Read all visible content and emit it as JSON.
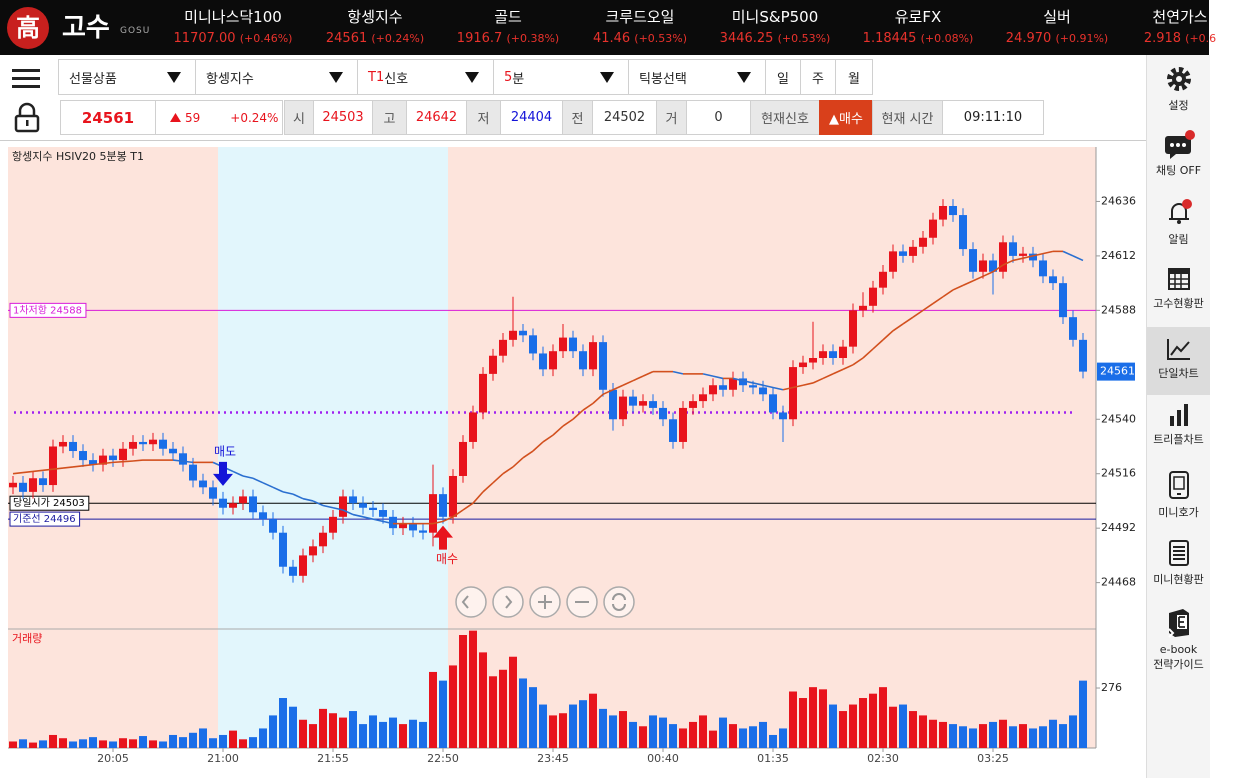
{
  "header": {
    "logo_char": "高",
    "logo_text": "고수",
    "logo_sub": "GOSU",
    "tickers": [
      {
        "name": "미니나스닥100",
        "price": "11707.00",
        "change": "(+0.46%)"
      },
      {
        "name": "항셍지수",
        "price": "24561",
        "change": "(+0.24%)"
      },
      {
        "name": "골드",
        "price": "1916.7",
        "change": "(+0.38%)"
      },
      {
        "name": "크루드오일",
        "price": "41.46",
        "change": "(+0.53%)"
      },
      {
        "name": "미니S&P500",
        "price": "3446.25",
        "change": "(+0.53%)"
      },
      {
        "name": "유로FX",
        "price": "1.18445",
        "change": "(+0.08%)"
      },
      {
        "name": "실버",
        "price": "24.970",
        "change": "(+0.91%)"
      },
      {
        "name": "천연가스",
        "price": "2.918",
        "change": "(+0.6"
      }
    ]
  },
  "toolbar": {
    "selects": [
      {
        "text": "선물상품"
      },
      {
        "text": "항셍지수"
      },
      {
        "accent": "T1",
        "text": "신호"
      },
      {
        "accent": "5",
        "text": "분"
      },
      {
        "text": "틱봉선택"
      }
    ],
    "periods": [
      "일",
      "주",
      "월"
    ]
  },
  "quote": {
    "price": "24561",
    "change": "59",
    "change_pct": "+0.24%",
    "fields": [
      {
        "label": "시",
        "value": "24503"
      },
      {
        "label": "고",
        "value": "24642"
      },
      {
        "label": "저",
        "value": "24404"
      },
      {
        "label": "전",
        "value": "24502"
      },
      {
        "label": "거",
        "value": "0"
      }
    ],
    "signal_label": "현재신호",
    "signal": "▲매수",
    "time_label": "현재 시간",
    "time": "09:11:10"
  },
  "sidebar": [
    {
      "label": "설정"
    },
    {
      "label": "채팅 OFF"
    },
    {
      "label": "알림"
    },
    {
      "label": "고수현황판"
    },
    {
      "label": "단일차트",
      "selected": true
    },
    {
      "label": "트리플차트"
    },
    {
      "label": "미니호가"
    },
    {
      "label": "미니현황판"
    },
    {
      "label": "e-book",
      "label2": "전략가이드"
    }
  ],
  "chart_data": {
    "type": "candlestick",
    "title": "항셍지수 HSIV20 5분봉 T1",
    "volume_title": "거래량",
    "up_color": "#e8141d",
    "down_color": "#1a6ee8",
    "categories": [
      null,
      null,
      null,
      null,
      null,
      null,
      null,
      null,
      null,
      null,
      "20:05",
      null,
      null,
      null,
      null,
      null,
      null,
      null,
      null,
      null,
      null,
      "21:00",
      null,
      null,
      null,
      null,
      null,
      null,
      null,
      null,
      null,
      null,
      "21:55",
      null,
      null,
      null,
      null,
      null,
      null,
      null,
      null,
      null,
      null,
      "22:50",
      null,
      null,
      null,
      null,
      null,
      null,
      null,
      null,
      null,
      null,
      "23:45",
      null,
      null,
      null,
      null,
      null,
      null,
      null,
      null,
      null,
      null,
      "00:40",
      null,
      null,
      null,
      null,
      null,
      null,
      null,
      null,
      null,
      null,
      "01:35",
      null,
      null,
      null,
      null,
      null,
      null,
      null,
      null,
      null,
      null,
      "02:30",
      null,
      null,
      null,
      null,
      null,
      null,
      null,
      null,
      null,
      null,
      "03:25",
      null,
      null,
      null,
      null,
      null,
      null,
      null,
      null,
      null
    ],
    "open": [
      24510,
      24512,
      24508,
      24514,
      24511,
      24528,
      24530,
      24526,
      24522,
      24520,
      24524,
      24522,
      24527,
      24530,
      24529,
      24531,
      24527,
      24525,
      24520,
      24513,
      24510,
      24505,
      24501,
      24503,
      24506,
      24499,
      24496,
      24490,
      24475,
      24471,
      24480,
      24484,
      24490,
      24497,
      24506,
      24503,
      24501,
      24500,
      24497,
      24492,
      24494,
      24491,
      24490,
      24507,
      24497,
      24515,
      24530,
      24543,
      24560,
      24568,
      24575,
      24579,
      24577,
      24569,
      24562,
      24570,
      24576,
      24570,
      24562,
      24574,
      24553,
      24540,
      24550,
      24546,
      24548,
      24545,
      24540,
      24530,
      24545,
      24548,
      24551,
      24555,
      24553,
      24558,
      24555,
      24554,
      24551,
      24543,
      24540,
      24563,
      24565,
      24567,
      24570,
      24567,
      24572,
      24588,
      24590,
      24598,
      24605,
      24614,
      24612,
      24616,
      24620,
      24628,
      24634,
      24630,
      24615,
      24605,
      24610,
      24605,
      24618,
      24612,
      24613,
      24610,
      24603,
      24600,
      24585,
      24575
    ],
    "high": [
      24515,
      24515,
      24517,
      24517,
      24531,
      24533,
      24533,
      24529,
      24525,
      24527,
      24527,
      24530,
      24533,
      24533,
      24534,
      24534,
      24530,
      24528,
      24523,
      24516,
      24513,
      24508,
      24506,
      24509,
      24509,
      24502,
      24499,
      24493,
      24478,
      24483,
      24487,
      24493,
      24500,
      24509,
      24509,
      24506,
      24504,
      24503,
      24500,
      24497,
      24497,
      24494,
      24520,
      24510,
      24518,
      24533,
      24546,
      24563,
      24571,
      24578,
      24594,
      24582,
      24580,
      24572,
      24573,
      24582,
      24579,
      24573,
      24577,
      24577,
      24556,
      24553,
      24553,
      24551,
      24551,
      24548,
      24543,
      24548,
      24551,
      24554,
      24558,
      24558,
      24561,
      24561,
      24557,
      24557,
      24554,
      24546,
      24566,
      24568,
      24583,
      24573,
      24573,
      24575,
      24591,
      24596,
      24601,
      24608,
      24617,
      24617,
      24619,
      24623,
      24631,
      24637,
      24637,
      24633,
      24618,
      24613,
      24613,
      24621,
      24621,
      24616,
      24616,
      24613,
      24606,
      24603,
      24588,
      24578
    ],
    "low": [
      24507,
      24505,
      24505,
      24508,
      24508,
      24525,
      24523,
      24519,
      24517,
      24517,
      24519,
      24519,
      24524,
      24526,
      24526,
      24524,
      24522,
      24517,
      24510,
      24507,
      24502,
      24498,
      24498,
      24500,
      24496,
      24493,
      24487,
      24472,
      24468,
      24468,
      24477,
      24481,
      24487,
      24494,
      24500,
      24498,
      24497,
      24494,
      24489,
      24489,
      24488,
      24487,
      24484,
      24494,
      24494,
      24512,
      24527,
      24540,
      24557,
      24565,
      24572,
      24574,
      24566,
      24559,
      24559,
      24567,
      24567,
      24559,
      24559,
      24550,
      24535,
      24537,
      24543,
      24543,
      24542,
      24537,
      24527,
      24527,
      24542,
      24545,
      24548,
      24550,
      24550,
      24552,
      24551,
      24548,
      24540,
      24530,
      24537,
      24560,
      24562,
      24564,
      24564,
      24564,
      24569,
      24585,
      24587,
      24595,
      24602,
      24609,
      24609,
      24613,
      24617,
      24625,
      24627,
      24612,
      24602,
      24602,
      24595,
      24602,
      24609,
      24609,
      24607,
      24600,
      24597,
      24582,
      24572,
      24558
    ],
    "close": [
      24512,
      24508,
      24514,
      24511,
      24528,
      24530,
      24526,
      24522,
      24520,
      24524,
      24522,
      24527,
      24530,
      24529,
      24531,
      24527,
      24525,
      24520,
      24513,
      24510,
      24505,
      24501,
      24503,
      24506,
      24499,
      24496,
      24490,
      24475,
      24471,
      24480,
      24484,
      24490,
      24497,
      24506,
      24503,
      24501,
      24500,
      24497,
      24492,
      24494,
      24491,
      24490,
      24507,
      24497,
      24515,
      24530,
      24543,
      24560,
      24568,
      24575,
      24579,
      24577,
      24569,
      24562,
      24570,
      24576,
      24570,
      24562,
      24574,
      24553,
      24540,
      24550,
      24546,
      24548,
      24545,
      24540,
      24530,
      24545,
      24548,
      24551,
      24555,
      24553,
      24558,
      24555,
      24554,
      24551,
      24543,
      24540,
      24563,
      24565,
      24567,
      24570,
      24567,
      24572,
      24588,
      24590,
      24598,
      24605,
      24614,
      24612,
      24616,
      24620,
      24628,
      24634,
      24630,
      24615,
      24605,
      24610,
      24605,
      24618,
      24612,
      24613,
      24610,
      24603,
      24600,
      24585,
      24575,
      24561
    ],
    "ma": {
      "up_color": "#d2501e",
      "down_color": "#2a6fd0",
      "values": [
        24516,
        24516.5,
        24517,
        24517.5,
        24518,
        24518.5,
        24519,
        24519.5,
        24520,
        24520.5,
        24521,
        24521.3,
        24521.6,
        24522,
        24522,
        24522,
        24522,
        24521.5,
        24521,
        24521,
        24521,
        24519,
        24517,
        24515,
        24514,
        24512,
        24510,
        24508,
        24507,
        24505,
        24504,
        24502,
        24501,
        24500,
        24498,
        24497,
        24496,
        24495,
        24494,
        24494,
        24494,
        24494,
        24494,
        24495,
        24497,
        24500,
        24503,
        24508,
        24512,
        24516,
        24519,
        24523,
        24526,
        24530,
        24533,
        24537,
        24540,
        24544,
        24547,
        24551,
        24553,
        24555,
        24557,
        24559,
        24561,
        24561,
        24561,
        24560,
        24560,
        24560,
        24559,
        24558,
        24558,
        24557,
        24556,
        24555,
        24554,
        24553,
        24554,
        24555,
        24556,
        24558,
        24560,
        24562,
        24564,
        24567,
        24571,
        24575,
        24579,
        24582,
        24585,
        24588,
        24591,
        24594,
        24597,
        24599,
        24601,
        24603,
        24605,
        24608,
        24610,
        24611,
        24612,
        24613,
        24614,
        24614,
        24612,
        24610
      ]
    },
    "volume": [
      30,
      40,
      25,
      35,
      60,
      45,
      30,
      40,
      50,
      35,
      30,
      45,
      40,
      55,
      35,
      30,
      60,
      50,
      70,
      90,
      45,
      60,
      80,
      40,
      50,
      90,
      150,
      230,
      190,
      130,
      110,
      180,
      160,
      140,
      170,
      110,
      150,
      120,
      140,
      110,
      130,
      120,
      350,
      310,
      380,
      520,
      540,
      440,
      330,
      360,
      420,
      320,
      280,
      200,
      150,
      160,
      200,
      220,
      250,
      180,
      150,
      170,
      120,
      100,
      150,
      140,
      110,
      90,
      120,
      150,
      80,
      140,
      110,
      90,
      100,
      120,
      60,
      90,
      260,
      230,
      280,
      270,
      200,
      170,
      200,
      230,
      250,
      280,
      190,
      200,
      170,
      150,
      130,
      120,
      110,
      100,
      90,
      110,
      120,
      130,
      100,
      110,
      90,
      100,
      130,
      110,
      150,
      310
    ],
    "ylim": [
      24448,
      24660
    ],
    "yticks": [
      24468,
      24492,
      24516,
      24540,
      24588,
      24612,
      24636
    ],
    "volume_ylim": [
      0,
      543
    ],
    "volume_ticks": [
      276
    ],
    "shade": {
      "from": "21:00",
      "to": "22:50",
      "color": "#e2f6fc"
    },
    "levels": [
      {
        "label": "1차저항 24588",
        "value": 24588,
        "color": "#d81bd8"
      },
      {
        "label": "당일시가 24503",
        "value": 24503,
        "color": "#000000"
      },
      {
        "label": "기준선 24496",
        "value": 24496,
        "color": "#1a1aa0"
      },
      {
        "value": 24543,
        "color": "#a020f0",
        "style": "dotted"
      }
    ],
    "signals": [
      {
        "label": "매도",
        "at": "21:00",
        "kind": "sell",
        "color": "#1414d8"
      },
      {
        "label": "매수",
        "at": "22:50",
        "kind": "buy",
        "color": "#e8141d"
      }
    ]
  }
}
